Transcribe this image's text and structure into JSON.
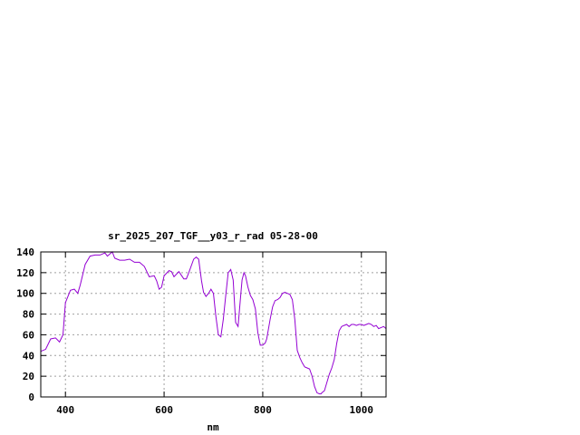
{
  "chart_data": {
    "type": "line",
    "title": "sr_2025_207_TGF__y03_r_rad 05-28-00",
    "xlabel": "nm",
    "ylabel": "",
    "xlim": [
      350,
      1050
    ],
    "ylim": [
      0,
      140
    ],
    "xticks": [
      400,
      600,
      800,
      1000
    ],
    "yticks": [
      0,
      20,
      40,
      60,
      80,
      100,
      120,
      140
    ],
    "xtick_labels": [
      "400",
      "600",
      "800",
      "1000"
    ],
    "ytick_labels": [
      "0",
      "20",
      "40",
      "60",
      "80",
      "100",
      "120",
      "140"
    ],
    "grid": true,
    "legend": "none",
    "colors": {
      "series": "#9400d3",
      "grid": "#a0a0a0",
      "axes": "#000000"
    },
    "series": [
      {
        "x": [
          350,
          360,
          370,
          380,
          388,
          395,
          400,
          410,
          418,
          425,
          430,
          440,
          450,
          460,
          470,
          480,
          485,
          490,
          495,
          500,
          510,
          520,
          530,
          540,
          550,
          560,
          570,
          580,
          585,
          590,
          595,
          600,
          610,
          615,
          620,
          630,
          640,
          645,
          650,
          660,
          665,
          670,
          676,
          680,
          685,
          690,
          695,
          700,
          705,
          710,
          715,
          720,
          725,
          730,
          735,
          740,
          745,
          750,
          755,
          758,
          762,
          765,
          770,
          775,
          780,
          785,
          790,
          795,
          800,
          805,
          808,
          812,
          815,
          820,
          825,
          830,
          835,
          840,
          845,
          850,
          855,
          860,
          865,
          870,
          875,
          880,
          885,
          890,
          895,
          900,
          905,
          910,
          915,
          918,
          920,
          925,
          930,
          935,
          940,
          945,
          950,
          955,
          960,
          965,
          970,
          975,
          980,
          985,
          990,
          995,
          1000,
          1005,
          1010,
          1015,
          1020,
          1025,
          1030,
          1035,
          1040,
          1045,
          1050
        ],
        "y": [
          44,
          46,
          56,
          57,
          53,
          60,
          91,
          103,
          104,
          100,
          108,
          128,
          136,
          137,
          137,
          139,
          136,
          138,
          140,
          134,
          132,
          132,
          133,
          130,
          130,
          126,
          116,
          117,
          112,
          104,
          106,
          117,
          122,
          121,
          116,
          121,
          114,
          114,
          120,
          133,
          135,
          133,
          112,
          101,
          97,
          100,
          104,
          100,
          78,
          60,
          58,
          75,
          98,
          120,
          123,
          113,
          72,
          68,
          96,
          113,
          120,
          117,
          106,
          98,
          94,
          85,
          62,
          50,
          50,
          52,
          56,
          67,
          75,
          87,
          93,
          94,
          96,
          100,
          101,
          100,
          99,
          94,
          75,
          45,
          38,
          33,
          29,
          28,
          27,
          20,
          10,
          4,
          3,
          3,
          4,
          6,
          14,
          22,
          28,
          36,
          52,
          64,
          68,
          69,
          70,
          68,
          70,
          70,
          69,
          70,
          70,
          69,
          70,
          71,
          70,
          68,
          69,
          66,
          67,
          68,
          66
        ]
      }
    ]
  }
}
